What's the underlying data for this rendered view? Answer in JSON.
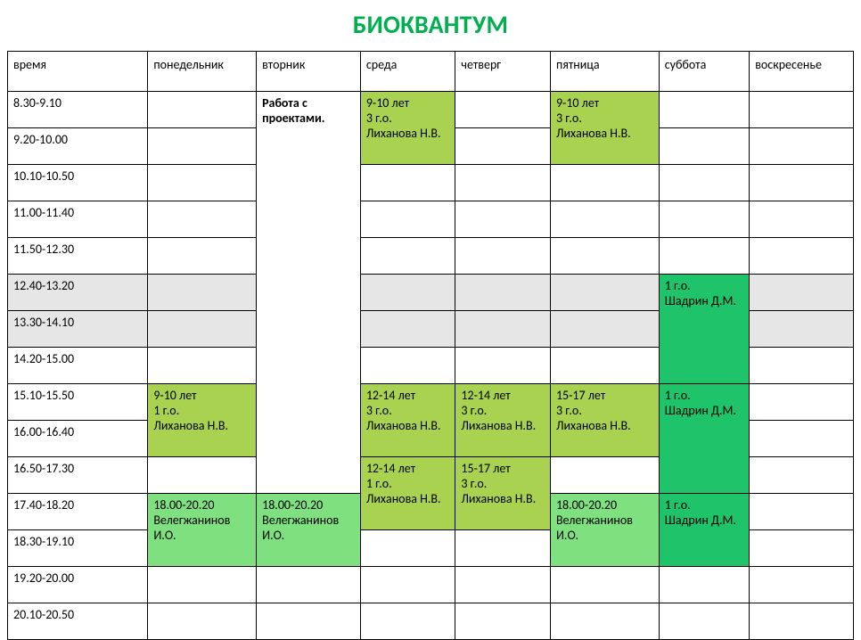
{
  "title": "БИОКВАНТУМ",
  "title_color": "#00b04f",
  "title_fontsize": 28,
  "font_family": "Calibri",
  "body_fontsize": 14,
  "border_color": "#000000",
  "background_color": "#ffffff",
  "colors": {
    "white": "#ffffff",
    "grey": "#e6e6e6",
    "lime": "#aad251",
    "light_green": "#7fe080",
    "green": "#1ec36a"
  },
  "columns": [
    {
      "key": "time",
      "label": "время"
    },
    {
      "key": "mon",
      "label": "понедельник"
    },
    {
      "key": "tue",
      "label": "вторник"
    },
    {
      "key": "wed",
      "label": "среда"
    },
    {
      "key": "thu",
      "label": "четверг"
    },
    {
      "key": "fri",
      "label": "пятница"
    },
    {
      "key": "sat",
      "label": "суббота"
    },
    {
      "key": "sun",
      "label": "воскресенье"
    }
  ],
  "time_rows": [
    "8.30-9.10",
    "9.20-10.00",
    "10.10-10.50",
    "11.00-11.40",
    "11.50-12.30",
    "12.40-13.20",
    "13.30-14.10",
    "14.20-15.00",
    "15.10-15.50",
    "16.00-16.40",
    "16.50-17.30",
    "17.40-18.20",
    "18.30-19.10",
    "19.20-20.00",
    "20.10-20.50"
  ],
  "cells": {
    "tue_projects": {
      "type": "plain",
      "text": "Работа с проектами.",
      "bold": true,
      "rowspan": 11
    },
    "wed_910_3go": {
      "type": "block",
      "color": "lime",
      "rowspan": 2,
      "lines": [
        "9-10 лет",
        "3 г.о.",
        "Лиханова Н.В."
      ]
    },
    "fri_910_3go": {
      "type": "block",
      "color": "lime",
      "rowspan": 2,
      "lines": [
        "9-10 лет",
        "3 г.о.",
        "Лиханова Н.В."
      ]
    },
    "grey_row6": {
      "type": "block",
      "color": "grey"
    },
    "grey_row7": {
      "type": "block",
      "color": "grey"
    },
    "sat_1go_a": {
      "type": "block",
      "color": "green",
      "rowspan": 3,
      "lines": [
        "1 г.о.",
        "Шадрин Д.М."
      ]
    },
    "mon_910_1go": {
      "type": "block",
      "color": "lime",
      "rowspan": 2,
      "lines": [
        "9-10 лет",
        "1 г.о.",
        "Лиханова Н.В."
      ]
    },
    "wed_1214_3go": {
      "type": "block",
      "color": "lime",
      "rowspan": 2,
      "lines": [
        "12-14 лет",
        "3 г.о.",
        "Лиханова Н.В."
      ]
    },
    "thu_1214_3go": {
      "type": "block",
      "color": "lime",
      "rowspan": 2,
      "lines": [
        "12-14 лет",
        "3 г.о.",
        "Лиханова Н.В."
      ]
    },
    "fri_1517_3go": {
      "type": "block",
      "color": "lime",
      "rowspan": 2,
      "lines": [
        "15-17 лет",
        "3 г.о.",
        "Лиханова Н.В."
      ]
    },
    "sat_1go_b": {
      "type": "block",
      "color": "green",
      "rowspan": 3,
      "lines": [
        "1 г.о.",
        "Шадрин Д.М."
      ]
    },
    "wed_1214_1go": {
      "type": "block",
      "color": "lime",
      "rowspan": 2,
      "lines": [
        "12-14 лет",
        "1 г.о.",
        "Лиханова Н.В."
      ]
    },
    "thu_1517_3go": {
      "type": "block",
      "color": "lime",
      "rowspan": 2,
      "lines": [
        "15-17 лет",
        "3 г.о.",
        "Лиханова Н.В."
      ]
    },
    "mon_velezh": {
      "type": "block",
      "color": "light_green",
      "rowspan": 2,
      "lines": [
        "18.00-20.20",
        "Велегжанинов И.О."
      ]
    },
    "tue_velezh": {
      "type": "block",
      "color": "light_green",
      "rowspan": 2,
      "lines": [
        "18.00-20.20",
        "Велегжанинов И.О."
      ]
    },
    "fri_velezh": {
      "type": "block",
      "color": "light_green",
      "rowspan": 2,
      "lines": [
        "18.00-20.20",
        "Велегжанинов И.О."
      ]
    },
    "sat_1go_c": {
      "type": "block",
      "color": "green",
      "rowspan": 2,
      "lines": [
        "1 г.о.",
        "Шадрин Д.М."
      ]
    }
  },
  "layout": [
    [
      {
        "time": 0
      },
      {
        "empty": true
      },
      {
        "ref": "tue_projects"
      },
      {
        "ref": "wed_910_3go"
      },
      {
        "empty": true
      },
      {
        "ref": "fri_910_3go"
      },
      {
        "empty": true
      },
      {
        "empty": true
      }
    ],
    [
      {
        "time": 1
      },
      {
        "empty": true
      },
      null,
      null,
      {
        "empty": true
      },
      null,
      {
        "empty": true
      },
      {
        "empty": true
      }
    ],
    [
      {
        "time": 2
      },
      {
        "empty": true
      },
      null,
      {
        "empty": true
      },
      {
        "empty": true
      },
      {
        "empty": true
      },
      {
        "empty": true
      },
      {
        "empty": true
      }
    ],
    [
      {
        "time": 3
      },
      {
        "empty": true
      },
      null,
      {
        "empty": true
      },
      {
        "empty": true
      },
      {
        "empty": true
      },
      {
        "empty": true
      },
      {
        "empty": true
      }
    ],
    [
      {
        "time": 4
      },
      {
        "empty": true
      },
      null,
      {
        "empty": true
      },
      {
        "empty": true
      },
      {
        "empty": true
      },
      {
        "empty": true
      },
      {
        "empty": true
      }
    ],
    [
      {
        "time": 5,
        "bg": "grey"
      },
      {
        "ref": "grey_row6"
      },
      null,
      {
        "ref": "grey_row6"
      },
      {
        "ref": "grey_row6"
      },
      {
        "ref": "grey_row6"
      },
      {
        "ref": "sat_1go_a"
      },
      {
        "ref": "grey_row6"
      }
    ],
    [
      {
        "time": 6,
        "bg": "grey"
      },
      {
        "ref": "grey_row7"
      },
      null,
      {
        "ref": "grey_row7"
      },
      {
        "ref": "grey_row7"
      },
      {
        "ref": "grey_row7"
      },
      null,
      {
        "ref": "grey_row7"
      }
    ],
    [
      {
        "time": 7
      },
      {
        "empty": true
      },
      null,
      {
        "empty": true
      },
      {
        "empty": true
      },
      {
        "empty": true
      },
      null,
      {
        "empty": true
      }
    ],
    [
      {
        "time": 8
      },
      {
        "ref": "mon_910_1go"
      },
      null,
      {
        "ref": "wed_1214_3go"
      },
      {
        "ref": "thu_1214_3go"
      },
      {
        "ref": "fri_1517_3go"
      },
      {
        "ref": "sat_1go_b"
      },
      {
        "empty": true
      }
    ],
    [
      {
        "time": 9
      },
      null,
      null,
      null,
      null,
      null,
      null,
      {
        "empty": true
      }
    ],
    [
      {
        "time": 10
      },
      {
        "empty": true
      },
      null,
      {
        "ref": "wed_1214_1go"
      },
      {
        "ref": "thu_1517_3go"
      },
      {
        "empty": true
      },
      null,
      {
        "empty": true
      }
    ],
    [
      {
        "time": 11
      },
      {
        "ref": "mon_velezh"
      },
      {
        "ref": "tue_velezh"
      },
      null,
      null,
      {
        "ref": "fri_velezh"
      },
      {
        "ref": "sat_1go_c"
      },
      {
        "empty": true
      }
    ],
    [
      {
        "time": 12
      },
      null,
      null,
      {
        "empty": true
      },
      {
        "empty": true
      },
      null,
      null,
      {
        "empty": true
      }
    ],
    [
      {
        "time": 13
      },
      {
        "empty": true
      },
      {
        "empty": true
      },
      {
        "empty": true
      },
      {
        "empty": true
      },
      {
        "empty": true
      },
      {
        "empty": true
      },
      {
        "empty": true
      }
    ],
    [
      {
        "time": 14
      },
      {
        "empty": true
      },
      {
        "empty": true
      },
      {
        "empty": true
      },
      {
        "empty": true
      },
      {
        "empty": true
      },
      {
        "empty": true
      },
      {
        "empty": true
      }
    ]
  ]
}
